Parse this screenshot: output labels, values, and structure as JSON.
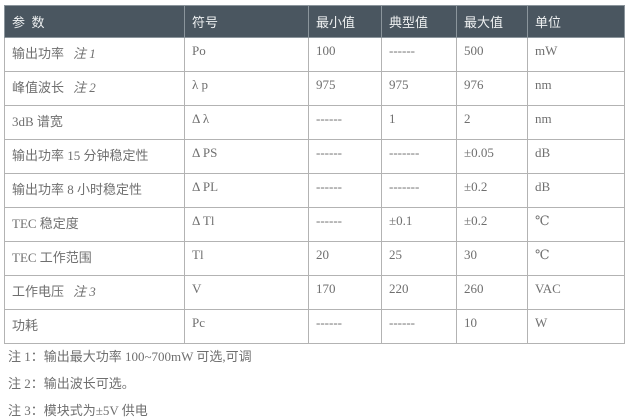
{
  "table": {
    "headers": [
      "参  数",
      "符号",
      "最小值",
      "典型值",
      "最大值",
      "单位"
    ],
    "rows": [
      {
        "param": "输出功率",
        "note": "注 1",
        "symbol": "Po",
        "min": "100",
        "typ": "------",
        "max": "500",
        "unit": "mW"
      },
      {
        "param": "峰值波长",
        "note": "注 2",
        "symbol": "λ p",
        "min": "975",
        "typ": "975",
        "max": "976",
        "unit": "nm"
      },
      {
        "param": "3dB 谱宽",
        "note": "",
        "symbol": "Δ λ",
        "min": "------",
        "typ": "1",
        "max": "2",
        "unit": "nm"
      },
      {
        "param": "输出功率 15 分钟稳定性",
        "note": "",
        "symbol": "Δ PS",
        "min": "------",
        "typ": "-------",
        "max": "±0.05",
        "unit": "dB"
      },
      {
        "param": "输出功率 8 小时稳定性",
        "note": "",
        "symbol": "Δ PL",
        "min": "------",
        "typ": "-------",
        "max": "±0.2",
        "unit": "dB"
      },
      {
        "param": "TEC 稳定度",
        "note": "",
        "symbol": "Δ Tl",
        "min": "------",
        "typ": "±0.1",
        "max": "±0.2",
        "unit": "℃"
      },
      {
        "param": "TEC 工作范围",
        "note": "",
        "symbol": "Tl",
        "min": "20",
        "typ": "25",
        "max": "30",
        "unit": "℃"
      },
      {
        "param": "工作电压",
        "note": "注 3",
        "symbol": "V",
        "min": "170",
        "typ": "220",
        "max": "260",
        "unit": "VAC"
      },
      {
        "param": "功耗",
        "note": "",
        "symbol": "Pc",
        "min": "------",
        "typ": "------",
        "max": "10",
        "unit": "W"
      }
    ]
  },
  "notes": [
    "注 1：输出最大功率 100~700mW 可选,可调",
    "注 2：输出波长可选。",
    "注 3：模块式为±5V 供电"
  ],
  "colors": {
    "header_bg": "#4a5660",
    "header_text": "#eef0f1",
    "body_text": "#6f6f6f",
    "border": "#b3b3b3"
  }
}
